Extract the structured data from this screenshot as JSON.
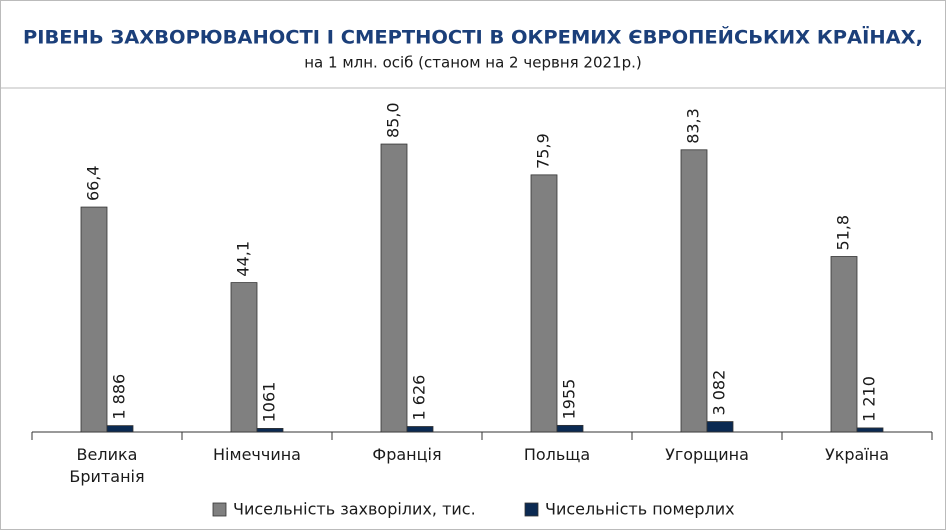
{
  "chart_data": {
    "type": "bar",
    "title": "РІВЕНЬ ЗАХВОРЮВАНОСТІ І СМЕРТНОСТІ В ОКРЕМИХ ЄВРОПЕЙСЬКИХ КРАЇНАХ,",
    "subtitle": "на 1 млн. осіб (станом на 2 червня 2021р.)",
    "categories": [
      "Велика Британія",
      "Німеччина",
      "Франція",
      "Польща",
      "Угорщина",
      "Україна"
    ],
    "series": [
      {
        "name": "Чисельність захворілих, тис.",
        "color": "#808080",
        "axis": "y",
        "values": [
          66.4,
          44.1,
          85.0,
          75.9,
          83.3,
          51.8
        ],
        "value_labels": [
          "66,4",
          "44,1",
          "85,0",
          "75,9",
          "83,3",
          "51,8"
        ]
      },
      {
        "name": "Чисельність померлих",
        "color": "#0b2a52",
        "axis": "y2",
        "values": [
          1886,
          1061,
          1626,
          1955,
          3082,
          1210
        ],
        "value_labels": [
          "1 886",
          "1061",
          "1 626",
          "1955",
          "3 082",
          "1 210"
        ]
      }
    ],
    "ylim": [
      0,
      98
    ],
    "y2lim": [
      0,
      98000
    ],
    "grid": false,
    "legend": "bottom"
  }
}
